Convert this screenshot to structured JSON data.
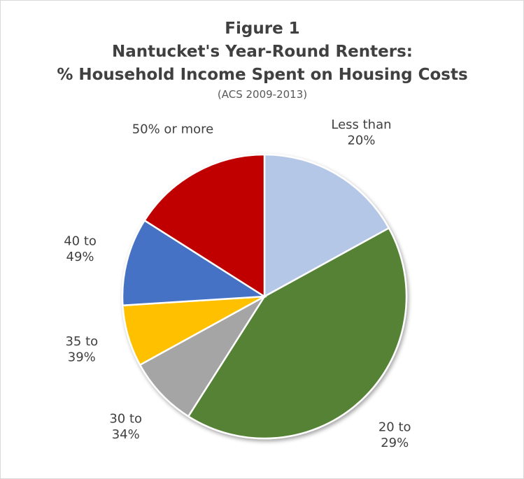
{
  "chart_data": {
    "type": "pie",
    "title": [
      "Figure 1",
      "Nantucket's Year-Round Renters:",
      "% Household Income Spent on Housing Costs"
    ],
    "subtitle": "(ACS 2009-2013)",
    "categories": [
      "Less than 20%",
      "20 to 29%",
      "30 to 34%",
      "35 to 39%",
      "40 to 49%",
      "50% or more"
    ],
    "values": [
      17,
      42,
      8,
      7,
      10,
      16
    ],
    "colors": [
      "#b4c7e7",
      "#548235",
      "#a5a5a5",
      "#ffc000",
      "#4472c4",
      "#c00000"
    ]
  }
}
